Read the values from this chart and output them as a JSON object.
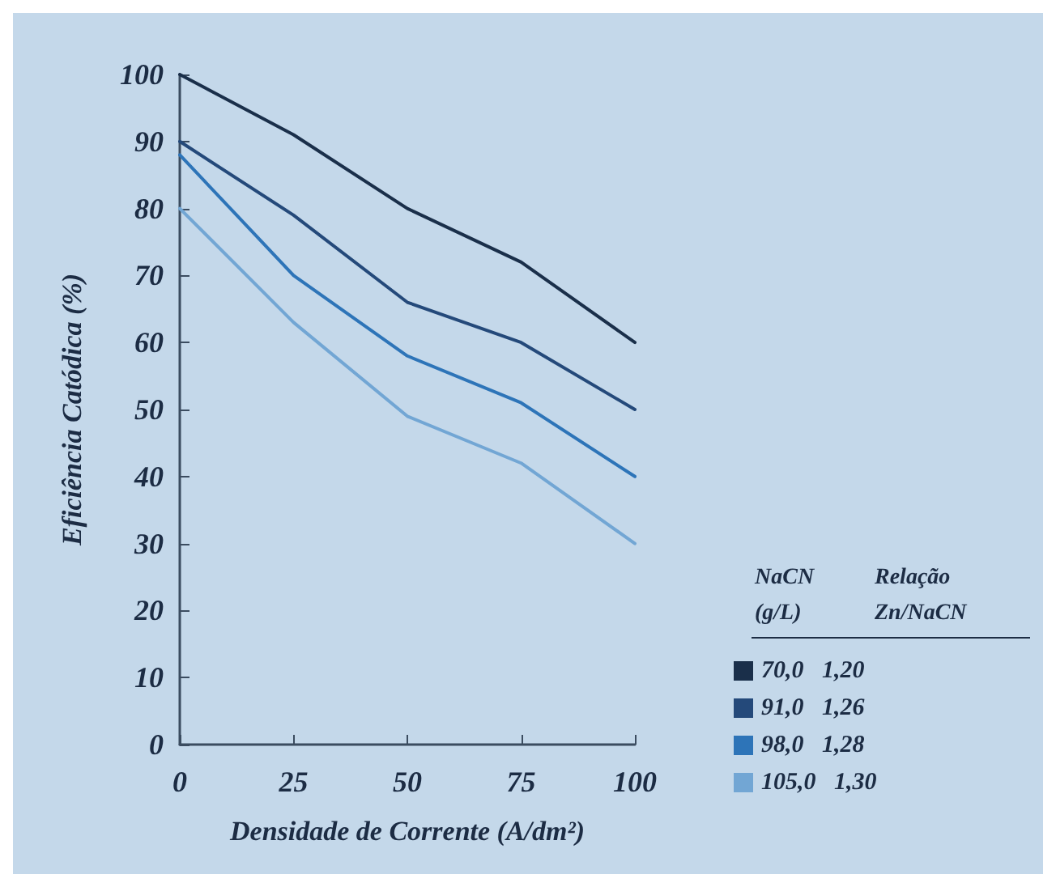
{
  "chart_data": {
    "type": "line",
    "xlabel": "Densidade de Corrente (A/dm²)",
    "ylabel": "Eficiência Catódica (%)",
    "legend_title": "NaCN (g/L)   Relação Zn/NaCN",
    "x": [
      0,
      25,
      50,
      75,
      100
    ],
    "xlim": [
      0,
      100
    ],
    "xticks": [
      0,
      25,
      50,
      75,
      100
    ],
    "ylim": [
      0,
      100
    ],
    "yticks": [
      0,
      10,
      20,
      30,
      40,
      50,
      60,
      70,
      80,
      90,
      100
    ],
    "grid": false,
    "legend": "bottom right",
    "marker": "none",
    "line_style": "solid",
    "series": [
      {
        "name": "70,0   1,20",
        "color": "#1a2f4a",
        "values": [
          100,
          91,
          80,
          72,
          60
        ]
      },
      {
        "name": "91,0   1,26",
        "color": "#24497a",
        "values": [
          90,
          79,
          66,
          60,
          50
        ]
      },
      {
        "name": "98,0   1,28",
        "color": "#2d74b8",
        "values": [
          88,
          70,
          58,
          51,
          40
        ]
      },
      {
        "name": "105,0   1,30",
        "color": "#72a6d4",
        "values": [
          80,
          63,
          49,
          42,
          30
        ]
      }
    ]
  }
}
